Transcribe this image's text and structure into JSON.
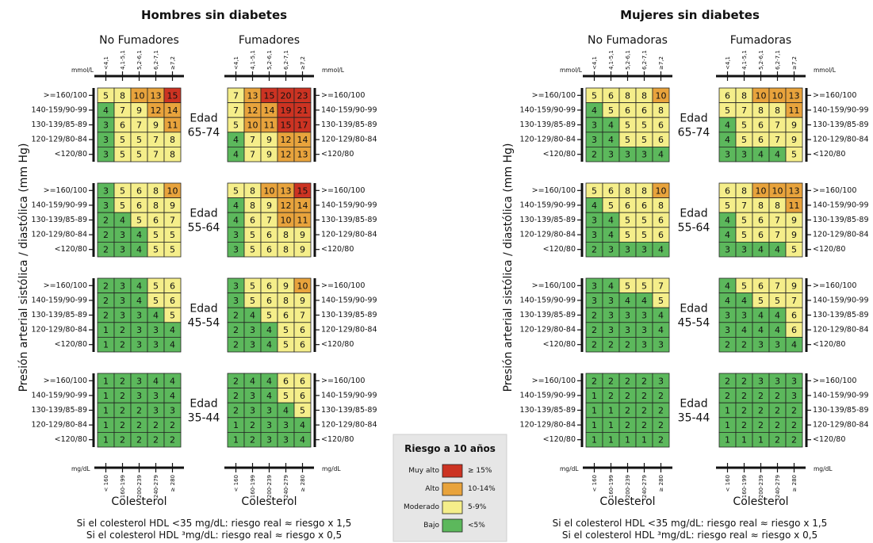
{
  "colors": {
    "bajo": "#5cb85c",
    "moderado": "#f5ee8a",
    "alto": "#e8a33c",
    "muy_alto": "#cc3322"
  },
  "labels": {
    "no_fumadores": "No Fumadores",
    "fumadores": "Fumadores",
    "no_fumadoras": "No Fumadoras",
    "fumadoras": "Fumadoras",
    "mmol": "mmol/L",
    "mgdl": "mg/dL",
    "colesterol": "Colesterol",
    "edad": "Edad",
    "ylabel": "Presión arterial sistólica / diastólica (mm Hg)"
  },
  "chart_data": {
    "type": "heatmap",
    "legend": {
      "title": "Riesgo a 10 años",
      "entries": [
        {
          "name": "Muy alto",
          "range": "≥ 15%",
          "color": "#cc3322"
        },
        {
          "name": "Alto",
          "range": "10-14%",
          "color": "#e8a33c"
        },
        {
          "name": "Moderado",
          "range": "5-9%",
          "color": "#f5ee8a"
        },
        {
          "name": "Bajo",
          "range": "<5%",
          "color": "#5cb85c"
        }
      ]
    },
    "bp_categories": [
      ">=160/100",
      "140-159/90-99",
      "130-139/85-89",
      "120-129/80-84",
      "<120/80"
    ],
    "chol_mmol": [
      "<4,1",
      "4,1-5,1",
      "5,2-6,1",
      "6,2-7,1",
      "≥7,2"
    ],
    "chol_mgdl": [
      "< 160",
      "160-199",
      "200-239",
      "240-279",
      "≥ 280"
    ],
    "ages": [
      "65-74",
      "55-64",
      "45-54",
      "35-44"
    ],
    "panels": [
      {
        "title": "Hombres sin diabetes",
        "footnotes": [
          "Si el colesterol HDL <35 mg/dL: riesgo real ≈ riesgo x 1,5",
          "Si el colesterol HDL ³mg/dL: riesgo real ≈ riesgo x 0,5"
        ],
        "groups": {
          "no_smoker": [
            [
              [
                5,
                8,
                10,
                13,
                15
              ],
              [
                4,
                7,
                9,
                12,
                14
              ],
              [
                3,
                6,
                7,
                9,
                11
              ],
              [
                3,
                5,
                5,
                7,
                8
              ],
              [
                3,
                5,
                5,
                7,
                8
              ]
            ],
            [
              [
                3,
                5,
                6,
                8,
                10
              ],
              [
                3,
                5,
                6,
                8,
                9
              ],
              [
                2,
                4,
                5,
                6,
                7
              ],
              [
                2,
                3,
                4,
                5,
                5
              ],
              [
                2,
                3,
                4,
                5,
                5
              ]
            ],
            [
              [
                2,
                3,
                4,
                5,
                6
              ],
              [
                2,
                3,
                4,
                5,
                6
              ],
              [
                2,
                3,
                3,
                4,
                5
              ],
              [
                1,
                2,
                3,
                3,
                4
              ],
              [
                1,
                2,
                3,
                3,
                4
              ]
            ],
            [
              [
                1,
                2,
                3,
                4,
                4
              ],
              [
                1,
                2,
                3,
                3,
                4
              ],
              [
                1,
                2,
                2,
                3,
                3
              ],
              [
                1,
                2,
                2,
                2,
                2
              ],
              [
                1,
                2,
                2,
                2,
                2
              ]
            ]
          ],
          "smoker": [
            [
              [
                7,
                13,
                15,
                20,
                23
              ],
              [
                7,
                12,
                14,
                19,
                21
              ],
              [
                5,
                10,
                11,
                15,
                17
              ],
              [
                4,
                7,
                9,
                12,
                14
              ],
              [
                4,
                7,
                9,
                12,
                13
              ]
            ],
            [
              [
                5,
                8,
                10,
                13,
                15
              ],
              [
                4,
                8,
                9,
                12,
                14
              ],
              [
                4,
                6,
                7,
                10,
                11
              ],
              [
                3,
                5,
                6,
                8,
                9
              ],
              [
                3,
                5,
                6,
                8,
                9
              ]
            ],
            [
              [
                3,
                5,
                6,
                9,
                10
              ],
              [
                3,
                5,
                6,
                8,
                9
              ],
              [
                2,
                4,
                5,
                6,
                7
              ],
              [
                2,
                3,
                4,
                5,
                6
              ],
              [
                2,
                3,
                4,
                5,
                6
              ]
            ],
            [
              [
                2,
                4,
                4,
                6,
                6
              ],
              [
                2,
                3,
                4,
                5,
                6
              ],
              [
                2,
                3,
                3,
                4,
                5
              ],
              [
                1,
                2,
                3,
                3,
                4
              ],
              [
                1,
                2,
                3,
                3,
                4
              ]
            ]
          ]
        }
      },
      {
        "title": "Mujeres sin diabetes",
        "footnotes": [
          "Si el colesterol HDL <35 mg/dL: riesgo real ≈ riesgo x 1,5",
          "Si el colesterol HDL ³mg/dL: riesgo real ≈ riesgo x 0,5"
        ],
        "groups": {
          "no_smoker": [
            [
              [
                5,
                6,
                8,
                8,
                10
              ],
              [
                4,
                5,
                6,
                6,
                8
              ],
              [
                3,
                4,
                5,
                5,
                6
              ],
              [
                3,
                4,
                5,
                5,
                6
              ],
              [
                2,
                3,
                3,
                3,
                4
              ]
            ],
            [
              [
                5,
                6,
                8,
                8,
                10
              ],
              [
                4,
                5,
                6,
                6,
                8
              ],
              [
                3,
                4,
                5,
                5,
                6
              ],
              [
                3,
                4,
                5,
                5,
                6
              ],
              [
                2,
                3,
                3,
                3,
                4
              ]
            ],
            [
              [
                3,
                4,
                5,
                5,
                7
              ],
              [
                3,
                3,
                4,
                4,
                5
              ],
              [
                2,
                3,
                3,
                3,
                4
              ],
              [
                2,
                3,
                3,
                3,
                4
              ],
              [
                2,
                2,
                2,
                3,
                3
              ]
            ],
            [
              [
                2,
                2,
                2,
                2,
                3
              ],
              [
                1,
                2,
                2,
                2,
                2
              ],
              [
                1,
                1,
                2,
                2,
                2
              ],
              [
                1,
                1,
                2,
                2,
                2
              ],
              [
                1,
                1,
                1,
                1,
                2
              ]
            ]
          ],
          "smoker": [
            [
              [
                6,
                8,
                10,
                10,
                13
              ],
              [
                5,
                7,
                8,
                8,
                11
              ],
              [
                4,
                5,
                6,
                7,
                9
              ],
              [
                4,
                5,
                6,
                7,
                9
              ],
              [
                3,
                3,
                4,
                4,
                5
              ]
            ],
            [
              [
                6,
                8,
                10,
                10,
                13
              ],
              [
                5,
                7,
                8,
                8,
                11
              ],
              [
                4,
                5,
                6,
                7,
                9
              ],
              [
                4,
                5,
                6,
                7,
                9
              ],
              [
                3,
                3,
                4,
                4,
                5
              ]
            ],
            [
              [
                4,
                5,
                6,
                7,
                9
              ],
              [
                4,
                4,
                5,
                5,
                7
              ],
              [
                3,
                3,
                4,
                4,
                6
              ],
              [
                3,
                4,
                4,
                4,
                6
              ],
              [
                2,
                2,
                3,
                3,
                4
              ]
            ],
            [
              [
                2,
                2,
                3,
                3,
                3
              ],
              [
                2,
                2,
                2,
                2,
                3
              ],
              [
                1,
                2,
                2,
                2,
                2
              ],
              [
                1,
                2,
                2,
                2,
                2
              ],
              [
                1,
                1,
                1,
                2,
                2
              ]
            ]
          ]
        }
      }
    ]
  }
}
